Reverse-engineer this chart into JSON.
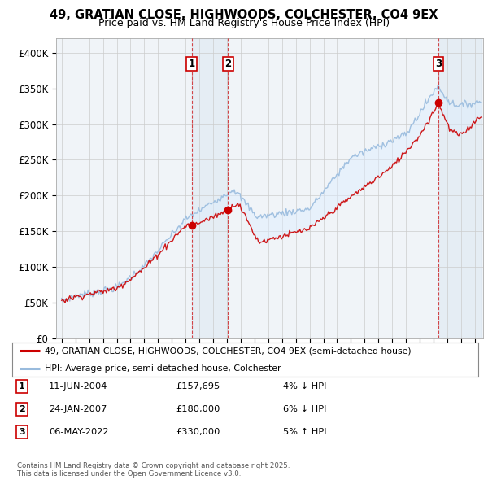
{
  "title_line1": "49, GRATIAN CLOSE, HIGHWOODS, COLCHESTER, CO4 9EX",
  "title_line2": "Price paid vs. HM Land Registry's House Price Index (HPI)",
  "ylim": [
    0,
    420000
  ],
  "yticks": [
    0,
    50000,
    100000,
    150000,
    200000,
    250000,
    300000,
    350000,
    400000
  ],
  "ytick_labels": [
    "£0",
    "£50K",
    "£100K",
    "£150K",
    "£200K",
    "£250K",
    "£300K",
    "£350K",
    "£400K"
  ],
  "price_paid_color": "#cc0000",
  "hpi_color": "#99bbdd",
  "hpi_fill_color": "#ddeeff",
  "transaction_vline_color": "#cc0000",
  "transactions": [
    {
      "label": "1",
      "date_num": 2004.44,
      "price": 157695,
      "date_str": "11-JUN-2004",
      "price_str": "£157,695",
      "diff": "4% ↓ HPI"
    },
    {
      "label": "2",
      "date_num": 2007.07,
      "price": 180000,
      "date_str": "24-JAN-2007",
      "price_str": "£180,000",
      "diff": "6% ↓ HPI"
    },
    {
      "label": "3",
      "date_num": 2022.35,
      "price": 330000,
      "date_str": "06-MAY-2022",
      "price_str": "£330,000",
      "diff": "5% ↑ HPI"
    }
  ],
  "legend_label_price": "49, GRATIAN CLOSE, HIGHWOODS, COLCHESTER, CO4 9EX (semi-detached house)",
  "legend_label_hpi": "HPI: Average price, semi-detached house, Colchester",
  "footer": "Contains HM Land Registry data © Crown copyright and database right 2025.\nThis data is licensed under the Open Government Licence v3.0.",
  "background_color": "#ffffff"
}
